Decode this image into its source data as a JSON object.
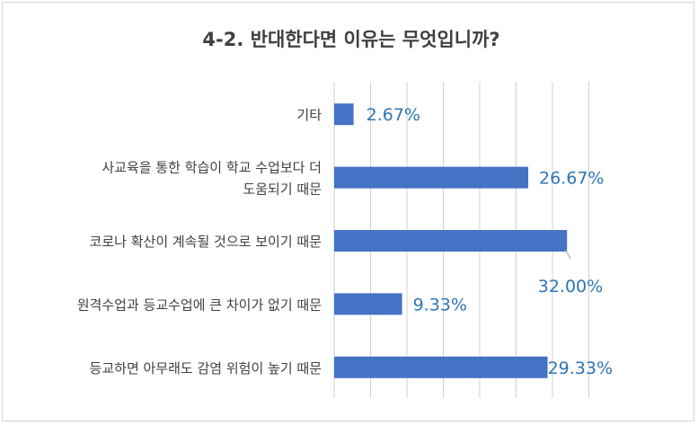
{
  "chart_data": {
    "type": "bar",
    "orientation": "horizontal",
    "title": "4-2. 반대한다면 이유는 무엇입니까?",
    "xlabel": "",
    "ylabel": "",
    "categories": [
      [
        "기타"
      ],
      [
        "사교육을 통한 학습이 학교 수업보다 더",
        "도움되기 때문"
      ],
      [
        "코로나 확산이 계속될 것으로 보이기 때문"
      ],
      [
        "원격수업과 등교수업에 큰 차이가 없기 때문"
      ],
      [
        "등교하면 아무래도 감염 위험이 높기 때문"
      ]
    ],
    "values": [
      2.67,
      26.67,
      32.0,
      9.33,
      29.33
    ],
    "data_labels": [
      "2.67%",
      "26.67%",
      "32.00%",
      "9.33%",
      "29.33%"
    ],
    "xlim": [
      0,
      35
    ],
    "grid": true,
    "legend": "none",
    "colors": {
      "bar": "#4472c4",
      "label": "#2e75b6",
      "title": "#404040",
      "category": "#404040",
      "grid": "#d0d0d0"
    }
  }
}
